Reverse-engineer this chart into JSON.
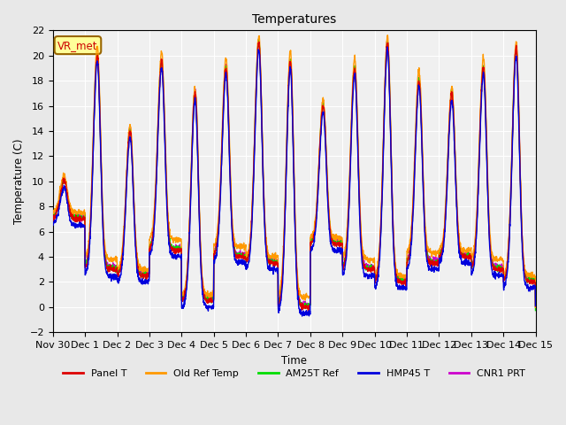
{
  "title": "Temperatures",
  "ylabel": "Temperature (C)",
  "xlabel": "Time",
  "ylim": [
    -2,
    22
  ],
  "yticks": [
    -2,
    0,
    2,
    4,
    6,
    8,
    10,
    12,
    14,
    16,
    18,
    20,
    22
  ],
  "xtick_labels": [
    "Nov 30",
    "Dec 1",
    "Dec 2",
    "Dec 3",
    "Dec 4",
    "Dec 5",
    "Dec 6",
    "Dec 7",
    "Dec 8",
    "Dec 9",
    "Dec 10",
    "Dec 11",
    "Dec 12",
    "Dec 13",
    "Dec 14",
    "Dec 15"
  ],
  "annotation_text": "VR_met",
  "annotation_color": "#cc0000",
  "annotation_bg": "#ffff99",
  "annotation_edge": "#996600",
  "fig_bg": "#e8e8e8",
  "plot_bg": "#f0f0f0",
  "grid_color": "#ffffff",
  "series_order": [
    "Panel T",
    "Old Ref Temp",
    "AM25T Ref",
    "HMP45 T",
    "CNR1 PRT"
  ],
  "series": {
    "Panel T": {
      "color": "#dd0000",
      "lw": 1.0,
      "zorder": 5
    },
    "Old Ref Temp": {
      "color": "#ff9900",
      "lw": 1.0,
      "zorder": 4
    },
    "AM25T Ref": {
      "color": "#00dd00",
      "lw": 1.0,
      "zorder": 3
    },
    "HMP45 T": {
      "color": "#0000dd",
      "lw": 1.0,
      "zorder": 6
    },
    "CNR1 PRT": {
      "color": "#cc00cc",
      "lw": 1.0,
      "zorder": 2
    }
  },
  "n_days": 15,
  "pts_per_day": 144,
  "day_highs": [
    10,
    20,
    14,
    19.5,
    17,
    19,
    21,
    19.5,
    16,
    19,
    21,
    18,
    17,
    19,
    20.5
  ],
  "day_lows": [
    7,
    3,
    2.5,
    4.5,
    0.5,
    4,
    3.5,
    0,
    5,
    3,
    2,
    3.5,
    4,
    3,
    2
  ],
  "peak_pos": [
    0.35,
    0.38,
    0.4,
    0.38,
    0.42,
    0.38,
    0.4,
    0.38,
    0.4,
    0.38,
    0.4,
    0.38,
    0.4,
    0.38,
    0.4
  ],
  "offsets": {
    "Panel T": [
      0.0,
      0.0,
      0.0,
      0.0,
      0.0,
      0.0,
      0.0,
      0.0,
      0.0,
      0.0,
      0.0,
      0.0,
      0.0,
      0.0,
      0.0
    ],
    "Old Ref Temp": [
      0.5,
      0.8,
      0.5,
      0.8,
      0.5,
      0.8,
      0.5,
      0.8,
      0.5,
      0.8,
      0.5,
      0.8,
      0.5,
      0.8,
      0.5
    ],
    "AM25T Ref": [
      0.1,
      0.1,
      0.1,
      0.1,
      0.1,
      0.1,
      0.1,
      0.1,
      0.1,
      0.1,
      0.1,
      0.1,
      0.1,
      0.1,
      0.1
    ],
    "HMP45 T": [
      -0.5,
      -0.5,
      -0.5,
      -0.5,
      -0.5,
      -0.5,
      -0.5,
      -0.5,
      -0.5,
      -0.5,
      -0.5,
      -0.5,
      -0.5,
      -0.5,
      -0.5
    ],
    "CNR1 PRT": [
      0.2,
      0.2,
      0.2,
      0.2,
      0.2,
      0.2,
      0.2,
      0.2,
      0.2,
      0.2,
      0.2,
      0.2,
      0.2,
      0.2,
      0.2
    ]
  }
}
